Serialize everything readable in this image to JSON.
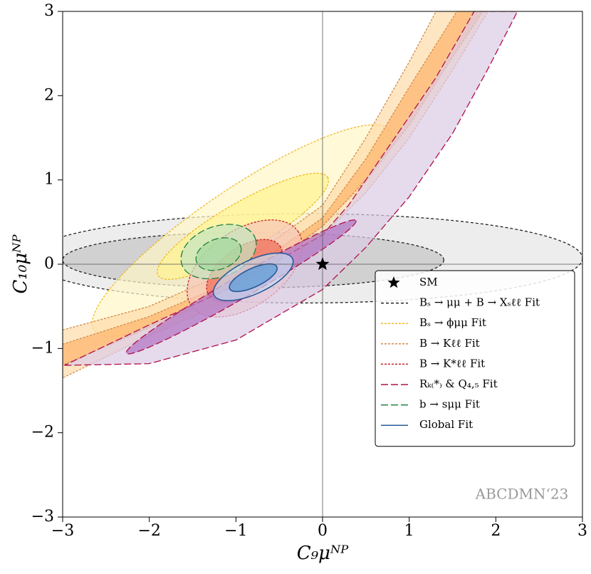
{
  "chart_data": {
    "type": "contour",
    "xlabel": "C₉μᴺᴾ",
    "ylabel": "C₁₀μᴺᴾ",
    "annotation": "ABCDMN‘23",
    "xlim": [
      -3,
      3
    ],
    "ylim": [
      -3,
      3
    ],
    "xticks": [
      {
        "value": -3,
        "label": "−3"
      },
      {
        "value": -2,
        "label": "−2"
      },
      {
        "value": -1,
        "label": "−1"
      },
      0,
      1,
      2,
      3
    ],
    "yticks": [
      {
        "value": -3,
        "label": "−3"
      },
      {
        "value": -2,
        "label": "−2"
      },
      {
        "value": -1,
        "label": "−1"
      },
      0,
      1,
      2,
      3
    ],
    "zero_lines": true,
    "legend": "lower right",
    "series": [
      {
        "name": "SM",
        "marker": "star",
        "color": "#000000",
        "x": [
          0
        ],
        "y": [
          0
        ]
      },
      {
        "name": "Bₛ → μμ + B → Xₛℓℓ Fit",
        "color": "#222222",
        "dash": "4,3",
        "regions": [
          {
            "shape": "ellipse",
            "fill": "#e6e6e6",
            "center": [
              -0.2,
              0.07
            ],
            "axes": [
              3.2,
              0.53
            ],
            "angle": 0
          },
          {
            "shape": "ellipse",
            "fill": "#c4c4c4",
            "center": [
              -0.8,
              0.05
            ],
            "axes": [
              2.2,
              0.33
            ],
            "angle": 0
          }
        ]
      },
      {
        "name": "Bₛ → ϕμμ Fit",
        "color": "#f0b820",
        "dash": "3,2",
        "regions": [
          {
            "shape": "ellipse",
            "fill": "#fff6c8",
            "center": [
              -0.93,
              0.4
            ],
            "axes": [
              2.06,
              0.5
            ],
            "angle": 34
          },
          {
            "shape": "ellipse",
            "fill": "#fff38e",
            "center": [
              -0.92,
              0.45
            ],
            "axes": [
              1.13,
              0.28
            ],
            "angle": 30
          }
        ]
      },
      {
        "name": "B → Kℓℓ Fit",
        "color": "#d08a4a",
        "dash": "3,2",
        "regions": [
          {
            "shape": "band",
            "fill": "#fddcaa",
            "x": [
              -3,
              -2,
              -1,
              0,
              0.5,
              1.0,
              1.31,
              1.91,
              1.5,
              1.0,
              0.5,
              0,
              -1,
              -2,
              -3
            ],
            "y": [
              -0.78,
              -0.5,
              -0.05,
              0.7,
              1.5,
              2.4,
              3.0,
              3.0,
              2.3,
              1.5,
              0.85,
              0.35,
              -0.4,
              -0.85,
              -1.35
            ]
          },
          {
            "shape": "band",
            "fill": "#fdb36a",
            "x": [
              -3,
              -2,
              -1,
              0,
              0.5,
              1.0,
              1.55,
              1.85,
              1.4,
              1.0,
              0.5,
              0,
              -1,
              -2,
              -3
            ],
            "y": [
              -0.95,
              -0.62,
              -0.18,
              0.55,
              1.25,
              2.1,
              3.0,
              3.0,
              2.3,
              1.65,
              1.0,
              0.45,
              -0.3,
              -0.75,
              -1.2
            ]
          }
        ]
      },
      {
        "name": "B → K*ℓℓ Fit",
        "color": "#c82020",
        "dash": "3,2",
        "regions": [
          {
            "shape": "ellipse",
            "fill": "#f7c4b8",
            "center": [
              -0.9,
              -0.05
            ],
            "axes": [
              0.75,
              0.45
            ],
            "angle": 35
          },
          {
            "shape": "ellipse",
            "fill": "#f06a55",
            "center": [
              -0.9,
              -0.08
            ],
            "axes": [
              0.5,
              0.28
            ],
            "angle": 35
          }
        ]
      },
      {
        "name": "Rₖ₍*₎ & Q₄,₅ Fit",
        "color": "#b0104a",
        "dash": "10,4",
        "regions": [
          {
            "shape": "band",
            "fill": "#dccbe6",
            "x": [
              -2.98,
              -2,
              -1,
              0,
              0.5,
              1,
              1.5,
              1.9,
              2.25,
              1.75,
              1.3,
              0.8,
              0.3,
              0,
              -1,
              -2,
              -2.98
            ],
            "y": [
              -1.2,
              -1.18,
              -0.9,
              -0.3,
              0.2,
              0.8,
              1.55,
              2.3,
              3.0,
              3.0,
              2.2,
              1.45,
              0.7,
              0.35,
              -0.25,
              -0.72,
              -1.2
            ]
          },
          {
            "shape": "ellipse",
            "fill": "#b070c0",
            "center": [
              -0.94,
              -0.27
            ],
            "axes": [
              1.53,
              0.13
            ],
            "angle": 30
          }
        ]
      },
      {
        "name": "b → sμμ Fit",
        "color": "#208040",
        "dash": "10,4",
        "regions": [
          {
            "shape": "ellipse",
            "fill": "#c4e4c0",
            "center": [
              -1.2,
              0.15
            ],
            "axes": [
              0.45,
              0.3
            ],
            "angle": 20
          },
          {
            "shape": "ellipse",
            "fill": "#a2d89c",
            "center": [
              -1.2,
              0.12
            ],
            "axes": [
              0.27,
              0.18
            ],
            "angle": 20
          }
        ]
      },
      {
        "name": "Global Fit",
        "color": "#2a5a9a",
        "dash": "none",
        "regions": [
          {
            "shape": "ellipse",
            "fill": "#c6dcef",
            "center": [
              -0.8,
              -0.15
            ],
            "axes": [
              0.5,
              0.2
            ],
            "angle": 25
          },
          {
            "shape": "ellipse",
            "fill": "#5b9bd5",
            "center": [
              -0.8,
              -0.16
            ],
            "axes": [
              0.3,
              0.11
            ],
            "angle": 25
          }
        ]
      }
    ]
  }
}
